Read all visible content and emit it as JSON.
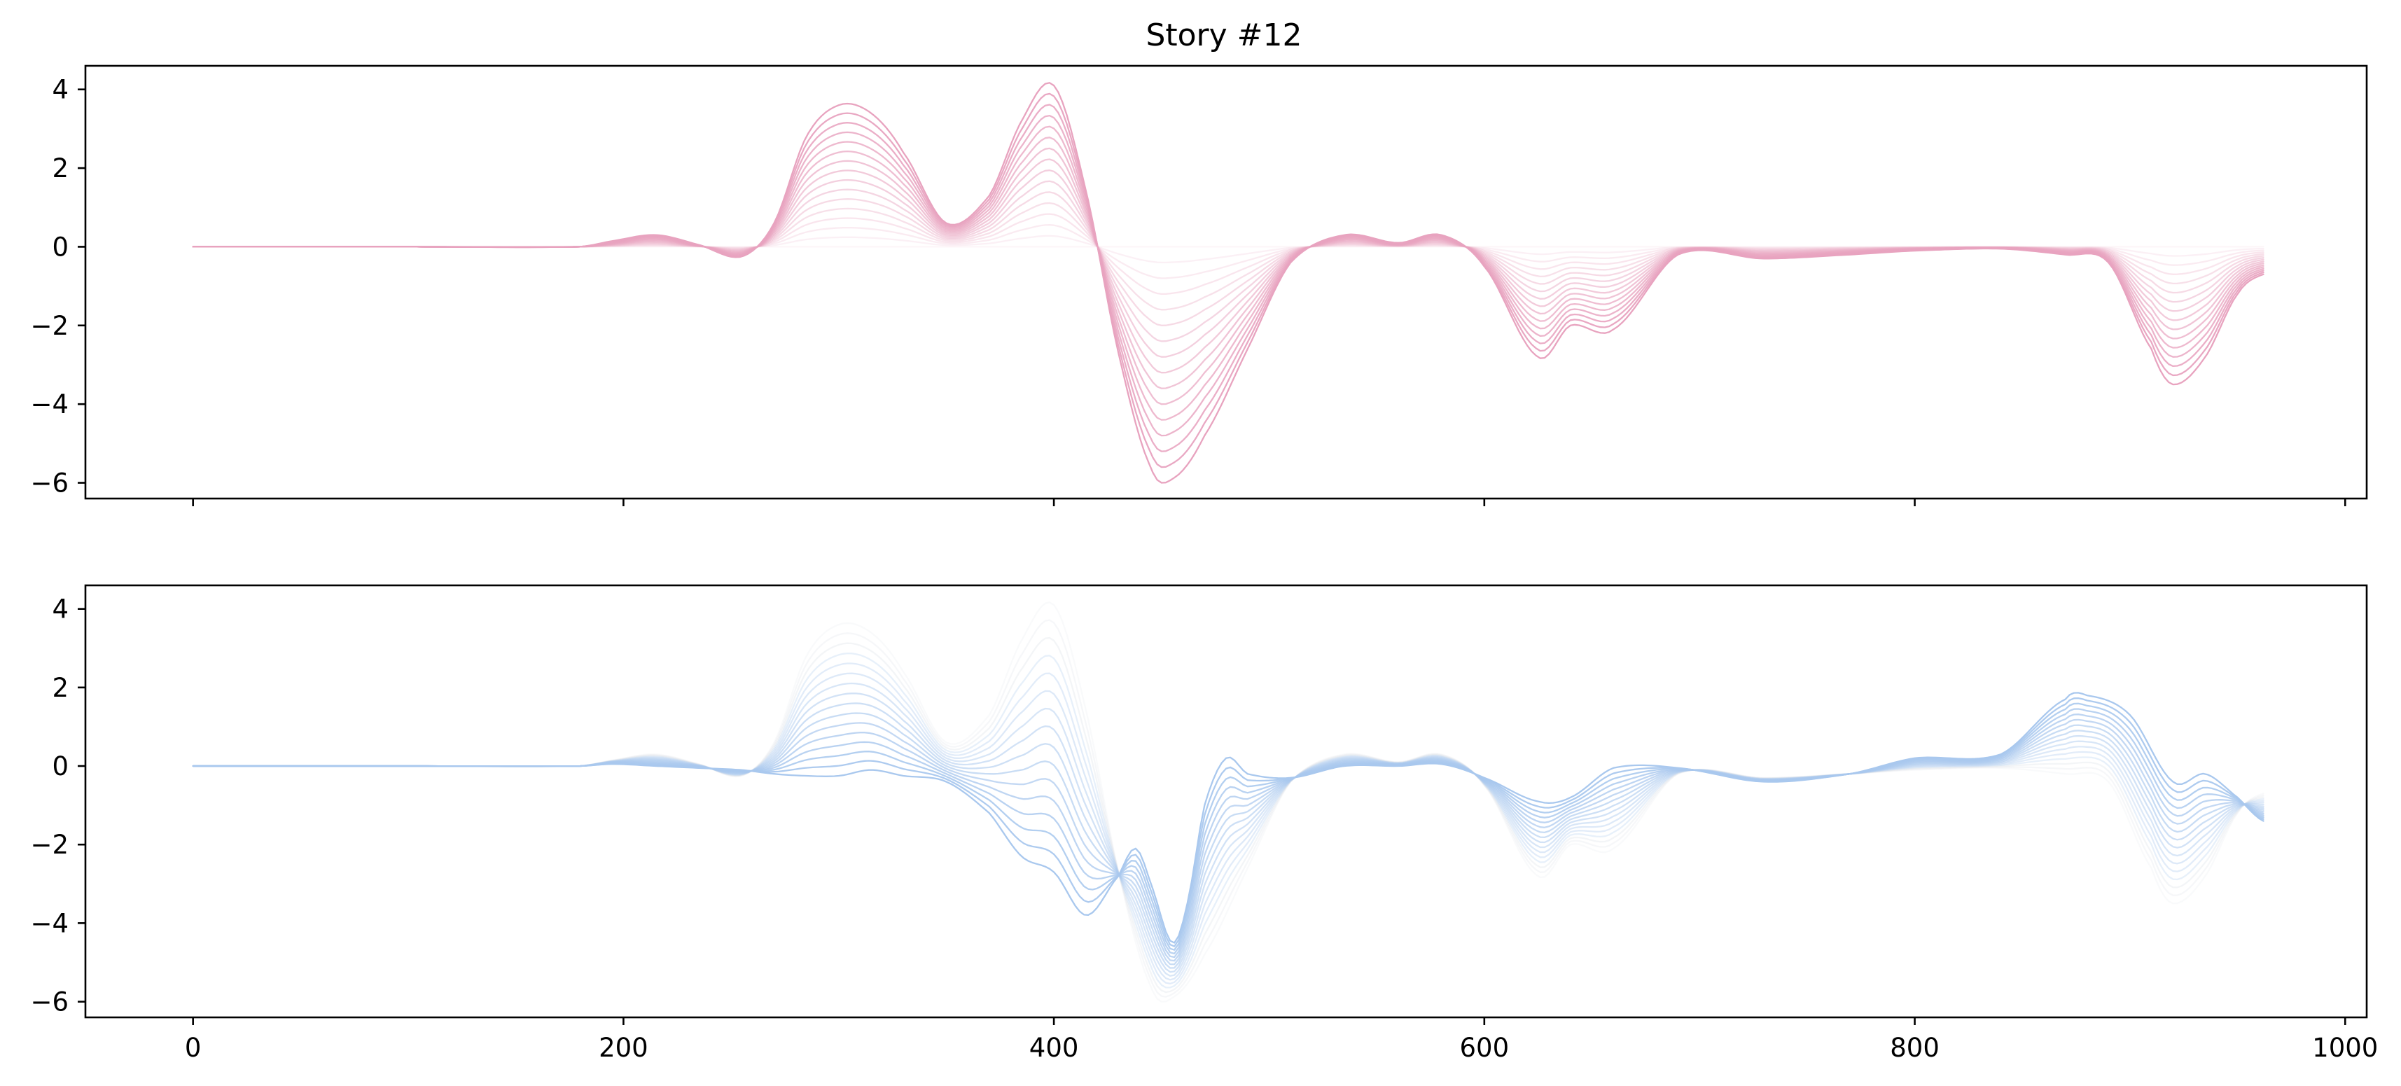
{
  "chart_data": [
    {
      "type": "line",
      "panel": "top",
      "title": "Story #12",
      "xlabel": "",
      "ylabel": "",
      "xlim": [
        -50,
        1010
      ],
      "ylim": [
        -6.4,
        4.6
      ],
      "x_ticks": [
        0,
        200,
        400,
        600,
        800,
        1000
      ],
      "x_tick_labels_visible": false,
      "y_ticks": [
        -6,
        -4,
        -2,
        0,
        2,
        4
      ],
      "y_tick_labels": [
        "−6",
        "−4",
        "−2",
        "0",
        "2",
        "4"
      ],
      "grid": false,
      "color": "#e8a3bf",
      "n_curves": 16,
      "curve_opacity_range": [
        0.1,
        1.0
      ],
      "x_range": [
        0,
        962
      ],
      "description_of_family": "16 overlaid curves of increasing opacity; the most opaque curve is the series below",
      "series": [
        {
          "x": [
            0,
            100,
            180,
            195,
            215,
            235,
            255,
            270,
            285,
            300,
            315,
            330,
            350,
            370,
            385,
            400,
            415,
            430,
            445,
            455,
            470,
            490,
            510,
            535,
            560,
            580,
            600,
            625,
            640,
            660,
            690,
            730,
            770,
            800,
            840,
            870,
            890,
            910,
            920,
            935,
            950,
            962
          ],
          "y": [
            0,
            0,
            0,
            0.15,
            0.3,
            0.05,
            -0.25,
            0.6,
            2.8,
            3.6,
            3.4,
            2.4,
            0.6,
            1.3,
            3.2,
            4.1,
            1.4,
            -2.7,
            -5.6,
            -5.9,
            -4.8,
            -2.6,
            -0.4,
            0.3,
            0.1,
            0.3,
            -0.5,
            -2.8,
            -2.0,
            -2.1,
            -0.2,
            -0.3,
            -0.2,
            -0.1,
            -0.05,
            -0.2,
            -0.4,
            -2.6,
            -3.5,
            -2.8,
            -1.2,
            -0.7
          ]
        }
      ]
    },
    {
      "type": "line",
      "panel": "bottom",
      "title": "",
      "xlabel": "",
      "ylabel": "",
      "xlim": [
        -50,
        1010
      ],
      "ylim": [
        -6.4,
        4.6
      ],
      "x_ticks": [
        0,
        200,
        400,
        600,
        800,
        1000
      ],
      "x_tick_labels": [
        "0",
        "200",
        "400",
        "600",
        "800",
        "1000"
      ],
      "y_ticks": [
        -6,
        -4,
        -2,
        0,
        2,
        4
      ],
      "y_tick_labels": [
        "−6",
        "−4",
        "−2",
        "0",
        "2",
        "4"
      ],
      "grid": false,
      "color": "#a9c8ee",
      "faded_color": "#c8d0da",
      "n_curves": 16,
      "curve_opacity_range": [
        0.1,
        1.0
      ],
      "x_range": [
        0,
        962
      ],
      "description_of_family": "16 overlaid curves; the faintest equals the top panel's strongest curve, the most opaque is the series below",
      "series": [
        {
          "x": [
            0,
            100,
            180,
            195,
            215,
            235,
            255,
            270,
            285,
            300,
            315,
            330,
            350,
            370,
            385,
            400,
            415,
            430,
            438,
            445,
            455,
            462,
            470,
            480,
            490,
            510,
            535,
            560,
            580,
            600,
            625,
            640,
            660,
            690,
            730,
            770,
            800,
            840,
            870,
            880,
            900,
            920,
            935,
            950,
            962
          ],
          "y": [
            0,
            0,
            0,
            0.05,
            0.0,
            -0.05,
            -0.1,
            -0.2,
            -0.25,
            -0.25,
            -0.1,
            -0.25,
            -0.4,
            -1.2,
            -2.3,
            -2.7,
            -3.8,
            -2.8,
            -2.1,
            -3.0,
            -4.5,
            -3.5,
            -1.0,
            0.2,
            -0.2,
            -0.3,
            0.0,
            0.0,
            0.05,
            -0.3,
            -0.9,
            -0.8,
            -0.05,
            -0.05,
            -0.4,
            -0.2,
            0.2,
            0.3,
            1.7,
            1.8,
            1.3,
            -0.4,
            -0.2,
            -0.8,
            -1.4
          ]
        }
      ]
    }
  ]
}
